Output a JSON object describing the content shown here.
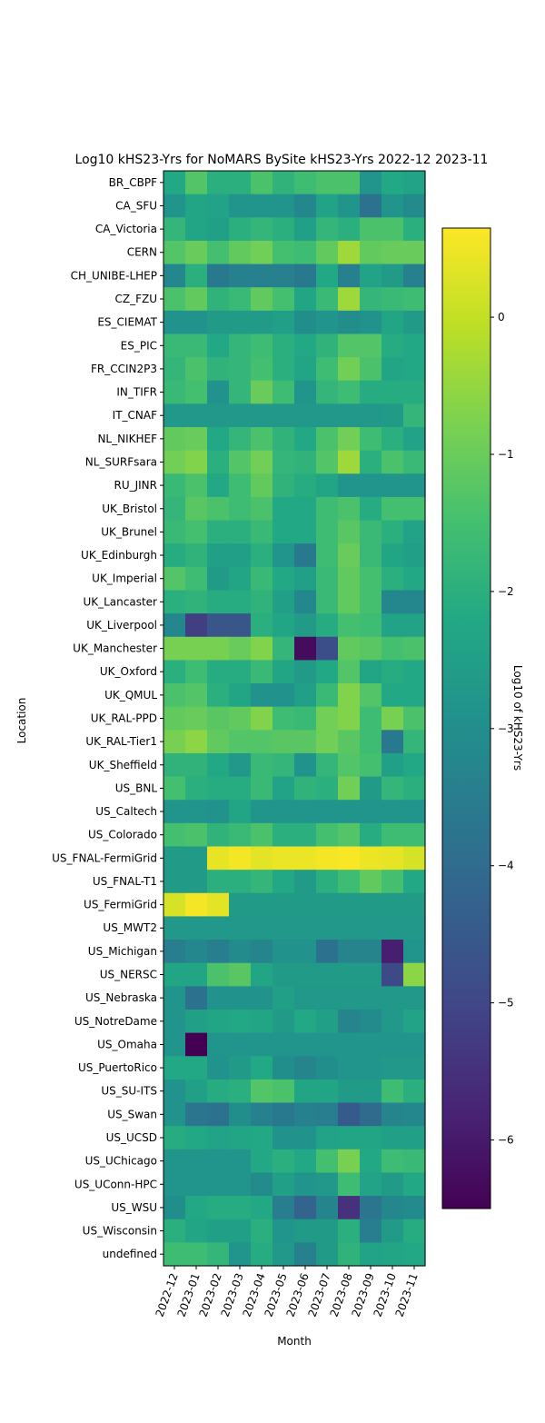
{
  "chart_data": {
    "type": "heatmap",
    "title": "Log10 kHS23-Yrs for NoMARS BySite kHS23-Yrs 2022-12 2023-11",
    "xlabel": "Month",
    "ylabel": "Location",
    "colorbar_label": "Log10 of kHS23-Yrs",
    "colormap": "viridis",
    "color_range": [
      -6.5,
      0.65
    ],
    "colorbar_ticks": [
      0,
      -1,
      -2,
      -3,
      -4,
      -5,
      -6
    ],
    "colorbar_tick_labels": [
      "0",
      "−1",
      "−2",
      "−3",
      "−4",
      "−5",
      "−6"
    ],
    "x_categories": [
      "2022-12",
      "2023-01",
      "2023-02",
      "2023-03",
      "2023-04",
      "2023-05",
      "2023-06",
      "2023-07",
      "2023-08",
      "2023-09",
      "2023-10",
      "2023-11"
    ],
    "y_categories": [
      "BR_CBPF",
      "CA_SFU",
      "CA_Victoria",
      "CERN",
      "CH_UNIBE-LHEP",
      "CZ_FZU",
      "ES_CIEMAT",
      "ES_PIC",
      "FR_CCIN2P3",
      "IN_TIFR",
      "IT_CNAF",
      "NL_NIKHEF",
      "NL_SURFsara",
      "RU_JINR",
      "UK_Bristol",
      "UK_Brunel",
      "UK_Edinburgh",
      "UK_Imperial",
      "UK_Lancaster",
      "UK_Liverpool",
      "UK_Manchester",
      "UK_Oxford",
      "UK_QMUL",
      "UK_RAL-PPD",
      "UK_RAL-Tier1",
      "UK_Sheffield",
      "US_BNL",
      "US_Caltech",
      "US_Colorado",
      "US_FNAL-FermiGrid",
      "US_FNAL-T1",
      "US_FermiGrid",
      "US_MWT2",
      "US_Michigan",
      "US_NERSC",
      "US_Nebraska",
      "US_NotreDame",
      "US_Omaha",
      "US_PuertoRico",
      "US_SU-ITS",
      "US_Swan",
      "US_UCSD",
      "US_UChicago",
      "US_UConn-HPC",
      "US_WSU",
      "US_Wisconsin",
      "undefined"
    ],
    "values": [
      [
        -2.2,
        -1.3,
        -2.0,
        -2.0,
        -1.4,
        -1.9,
        -1.6,
        -1.4,
        -1.4,
        -2.8,
        -2.2,
        -2.4
      ],
      [
        -2.8,
        -2.3,
        -2.4,
        -2.8,
        -2.8,
        -2.8,
        -3.2,
        -2.4,
        -2.8,
        -3.8,
        -2.8,
        -3.1
      ],
      [
        -1.8,
        -2.3,
        -2.5,
        -2.0,
        -1.8,
        -2.0,
        -2.5,
        -1.8,
        -2.0,
        -1.4,
        -1.4,
        -2.0
      ],
      [
        -1.3,
        -1.0,
        -1.5,
        -1.1,
        -0.9,
        -1.5,
        -1.6,
        -1.1,
        -0.4,
        -1.1,
        -1.0,
        -1.0
      ],
      [
        -3.2,
        -2.0,
        -3.6,
        -3.4,
        -3.4,
        -3.4,
        -3.6,
        -2.2,
        -3.4,
        -2.4,
        -2.6,
        -3.4
      ],
      [
        -1.4,
        -1.1,
        -1.9,
        -1.7,
        -1.1,
        -1.5,
        -2.3,
        -1.7,
        -0.4,
        -1.8,
        -1.7,
        -1.6
      ],
      [
        -2.9,
        -2.9,
        -2.6,
        -2.6,
        -2.6,
        -2.5,
        -3.0,
        -2.8,
        -3.0,
        -2.9,
        -2.3,
        -2.6
      ],
      [
        -1.7,
        -1.7,
        -2.2,
        -1.8,
        -1.6,
        -2.0,
        -2.2,
        -1.9,
        -1.3,
        -1.3,
        -2.1,
        -2.2
      ],
      [
        -1.8,
        -1.4,
        -1.9,
        -1.8,
        -1.5,
        -2.0,
        -2.3,
        -1.6,
        -0.9,
        -1.4,
        -2.3,
        -2.2
      ],
      [
        -1.7,
        -1.5,
        -2.9,
        -1.8,
        -1.0,
        -1.6,
        -2.8,
        -1.8,
        -1.6,
        -2.1,
        -2.1,
        -2.1
      ],
      [
        -2.7,
        -2.7,
        -2.7,
        -2.7,
        -2.7,
        -2.7,
        -2.7,
        -2.7,
        -2.7,
        -2.7,
        -2.6,
        -1.8
      ],
      [
        -1.1,
        -1.0,
        -2.2,
        -1.8,
        -1.4,
        -1.9,
        -2.2,
        -1.4,
        -0.9,
        -1.6,
        -2.0,
        -2.4
      ],
      [
        -0.9,
        -0.7,
        -2.0,
        -1.3,
        -0.9,
        -1.8,
        -1.9,
        -1.3,
        -0.4,
        -2.0,
        -1.4,
        -1.7
      ],
      [
        -1.7,
        -1.4,
        -2.2,
        -1.6,
        -1.1,
        -1.9,
        -2.1,
        -2.3,
        -2.8,
        -2.8,
        -2.8,
        -2.8
      ],
      [
        -1.8,
        -1.2,
        -1.4,
        -1.6,
        -1.4,
        -2.2,
        -2.2,
        -1.6,
        -1.4,
        -2.1,
        -1.5,
        -1.5
      ],
      [
        -1.7,
        -1.5,
        -2.0,
        -2.0,
        -1.7,
        -2.2,
        -2.2,
        -1.6,
        -1.2,
        -1.7,
        -2.0,
        -2.4
      ],
      [
        -2.1,
        -1.9,
        -2.5,
        -2.5,
        -2.0,
        -2.8,
        -3.6,
        -1.6,
        -1.0,
        -1.7,
        -2.3,
        -2.5
      ],
      [
        -1.3,
        -1.6,
        -2.6,
        -2.3,
        -1.7,
        -2.2,
        -2.5,
        -1.7,
        -1.1,
        -1.5,
        -2.0,
        -2.2
      ],
      [
        -2.0,
        -1.9,
        -2.1,
        -2.1,
        -1.9,
        -2.5,
        -3.2,
        -1.7,
        -1.1,
        -1.5,
        -3.2,
        -3.2
      ],
      [
        -3.2,
        -5.2,
        -4.6,
        -4.6,
        -2.0,
        -2.3,
        -2.6,
        -2.1,
        -1.5,
        -1.6,
        -2.4,
        -2.4
      ],
      [
        -0.8,
        -0.8,
        -0.8,
        -1.0,
        -0.7,
        -1.8,
        -6.3,
        -4.8,
        -1.1,
        -1.2,
        -1.5,
        -1.4
      ],
      [
        -2.0,
        -1.6,
        -2.1,
        -2.1,
        -1.7,
        -2.3,
        -2.6,
        -2.2,
        -1.3,
        -2.3,
        -2.1,
        -2.2
      ],
      [
        -1.4,
        -1.3,
        -2.0,
        -2.3,
        -2.9,
        -2.9,
        -2.5,
        -1.7,
        -0.7,
        -1.3,
        -2.2,
        -2.2
      ],
      [
        -1.1,
        -1.0,
        -1.2,
        -1.1,
        -0.7,
        -1.6,
        -1.7,
        -0.9,
        -0.7,
        -1.6,
        -0.8,
        -1.4
      ],
      [
        -0.8,
        -0.6,
        -1.1,
        -1.3,
        -1.3,
        -1.2,
        -1.2,
        -0.9,
        -1.2,
        -1.6,
        -3.6,
        -1.8
      ],
      [
        -1.9,
        -1.9,
        -2.2,
        -2.7,
        -1.7,
        -1.8,
        -2.9,
        -1.8,
        -1.3,
        -1.5,
        -2.5,
        -2.2
      ],
      [
        -1.5,
        -2.0,
        -2.1,
        -2.1,
        -1.7,
        -2.4,
        -1.9,
        -2.0,
        -0.9,
        -2.6,
        -1.8,
        -2.0
      ],
      [
        -2.8,
        -2.8,
        -2.9,
        -2.3,
        -2.8,
        -2.8,
        -2.8,
        -2.8,
        -2.8,
        -2.8,
        -2.8,
        -2.8
      ],
      [
        -1.5,
        -1.4,
        -1.9,
        -1.7,
        -1.4,
        -2.0,
        -2.0,
        -1.5,
        -1.3,
        -2.1,
        -1.6,
        -1.6
      ],
      [
        -2.6,
        -2.6,
        0.4,
        0.55,
        0.35,
        0.45,
        0.45,
        0.55,
        0.6,
        0.45,
        0.4,
        0.2
      ],
      [
        -2.6,
        -2.6,
        -2.0,
        -2.0,
        -1.8,
        -2.2,
        -2.6,
        -2.0,
        -1.6,
        -1.1,
        -1.5,
        -2.2
      ],
      [
        0.2,
        0.55,
        0.35,
        -2.6,
        -2.6,
        -2.6,
        -2.6,
        -2.6,
        -2.6,
        -2.6,
        -2.6,
        -2.6
      ],
      [
        -2.7,
        -2.7,
        -2.7,
        -2.7,
        -2.7,
        -2.7,
        -2.7,
        -2.7,
        -2.7,
        -2.7,
        -2.7,
        -2.7
      ],
      [
        -3.5,
        -3.2,
        -3.5,
        -3.1,
        -3.3,
        -2.9,
        -2.9,
        -3.8,
        -3.3,
        -3.3,
        -5.9,
        -2.8
      ],
      [
        -2.3,
        -2.3,
        -1.4,
        -1.2,
        -2.3,
        -2.6,
        -2.6,
        -2.6,
        -2.6,
        -2.6,
        -4.9,
        -0.6
      ],
      [
        -2.8,
        -3.8,
        -2.9,
        -2.9,
        -2.9,
        -2.5,
        -2.7,
        -2.7,
        -2.7,
        -2.7,
        -2.7,
        -2.7
      ],
      [
        -2.8,
        -2.5,
        -2.3,
        -2.2,
        -2.3,
        -2.6,
        -2.2,
        -2.5,
        -3.3,
        -3.1,
        -2.7,
        -2.4
      ],
      [
        -2.8,
        -6.5,
        -2.8,
        -2.8,
        -2.8,
        -2.8,
        -2.8,
        -2.8,
        -2.8,
        -2.8,
        -2.8,
        -2.8
      ],
      [
        -2.2,
        -2.2,
        -2.9,
        -2.6,
        -2.2,
        -3.0,
        -3.3,
        -3.0,
        -2.8,
        -2.8,
        -2.7,
        -2.7
      ],
      [
        -2.9,
        -2.5,
        -2.1,
        -2.0,
        -1.3,
        -1.4,
        -2.3,
        -2.3,
        -2.6,
        -2.6,
        -1.6,
        -2.0
      ],
      [
        -2.9,
        -3.7,
        -3.8,
        -3.0,
        -3.4,
        -3.6,
        -3.4,
        -3.5,
        -4.5,
        -4.0,
        -3.3,
        -3.2
      ],
      [
        -2.1,
        -2.2,
        -2.4,
        -2.3,
        -2.2,
        -2.9,
        -2.9,
        -2.4,
        -2.3,
        -2.3,
        -2.5,
        -2.5
      ],
      [
        -2.8,
        -2.8,
        -2.8,
        -2.8,
        -2.2,
        -2.0,
        -2.2,
        -1.5,
        -0.8,
        -2.2,
        -1.6,
        -1.7
      ],
      [
        -2.8,
        -2.8,
        -2.8,
        -2.8,
        -3.1,
        -2.5,
        -2.8,
        -2.7,
        -1.6,
        -2.4,
        -2.6,
        -2.2
      ],
      [
        -3.0,
        -2.2,
        -2.1,
        -2.1,
        -2.2,
        -3.5,
        -4.2,
        -3.3,
        -5.5,
        -3.7,
        -3.2,
        -3.1
      ],
      [
        -2.0,
        -2.3,
        -2.5,
        -2.5,
        -2.0,
        -2.8,
        -2.6,
        -2.6,
        -2.0,
        -3.5,
        -2.6,
        -2.1
      ],
      [
        -1.6,
        -1.6,
        -1.8,
        -2.8,
        -2.1,
        -2.7,
        -3.4,
        -2.6,
        -1.9,
        -2.4,
        -2.3,
        -2.2
      ]
    ]
  }
}
